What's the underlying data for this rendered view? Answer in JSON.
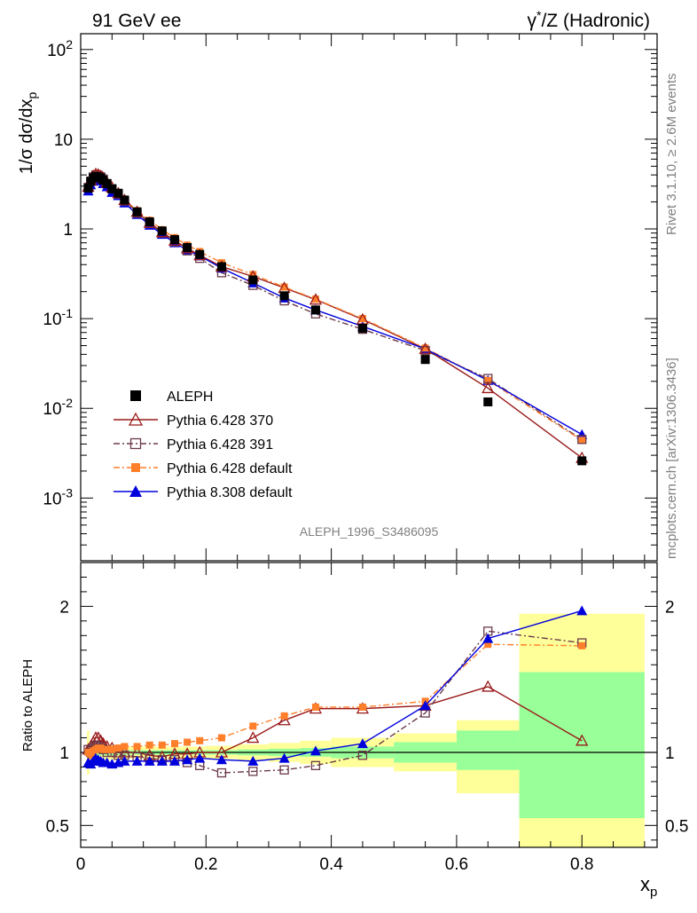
{
  "header": {
    "left_label": "91 GeV ee",
    "right_label_prefix": "γ",
    "right_label_sup": "*",
    "right_label_suffix": "/Z (Hadronic)"
  },
  "side_text": {
    "rivet": "Rivet 3.1.10, ≥ 2.6M events",
    "mcplots": "mcplots.cern.ch [arXiv:1306.3436]"
  },
  "analysis_id": "ALEPH_1996_S3486095",
  "colors": {
    "aleph": "#000000",
    "p370": "#9a1a1a",
    "p391": "#6b3a4a",
    "p6def": "#ff7f2a",
    "p8def": "#0000dd",
    "band_inner": "#99ff99",
    "band_outer": "#ffff99"
  },
  "chart_data": [
    {
      "type": "line",
      "panel": "main",
      "title": "",
      "xlabel": "",
      "ylabel": "1/σ dσ/dx_p",
      "yscale": "log",
      "ylim": [
        0.0002,
        150
      ],
      "xlim": [
        0,
        0.92
      ],
      "y_tick_labels": [
        "10^-3",
        "10^-2",
        "10^-1",
        "1",
        "10",
        "10^2"
      ],
      "legend": [
        {
          "key": "aleph",
          "label": "ALEPH"
        },
        {
          "key": "p370",
          "label": "Pythia 6.428 370"
        },
        {
          "key": "p391",
          "label": "Pythia 6.428 391"
        },
        {
          "key": "p6def",
          "label": "Pythia 6.428 default"
        },
        {
          "key": "p8def",
          "label": "Pythia 8.308 default"
        }
      ],
      "legend_position": "bottom-left",
      "x": [
        0.012,
        0.016,
        0.02,
        0.024,
        0.028,
        0.032,
        0.036,
        0.042,
        0.05,
        0.06,
        0.07,
        0.09,
        0.11,
        0.13,
        0.15,
        0.17,
        0.19,
        0.225,
        0.275,
        0.325,
        0.375,
        0.45,
        0.55,
        0.65,
        0.8
      ],
      "series": [
        {
          "key": "aleph",
          "values": [
            2.85,
            3.4,
            3.7,
            3.85,
            3.8,
            3.7,
            3.5,
            3.2,
            2.8,
            2.5,
            2.1,
            1.55,
            1.2,
            0.95,
            0.76,
            0.62,
            0.52,
            0.38,
            0.27,
            0.18,
            0.125,
            0.078,
            0.035,
            0.0118,
            0.0026
          ]
        },
        {
          "key": "p370",
          "values": [
            2.95,
            3.5,
            3.9,
            4.1,
            4.05,
            3.9,
            3.7,
            3.3,
            2.9,
            2.5,
            2.1,
            1.55,
            1.17,
            0.92,
            0.74,
            0.61,
            0.51,
            0.38,
            0.295,
            0.22,
            0.163,
            0.098,
            0.046,
            0.0168,
            0.0028
          ]
        },
        {
          "key": "p391",
          "values": [
            2.9,
            3.4,
            3.8,
            4.0,
            3.95,
            3.8,
            3.6,
            3.2,
            2.8,
            2.45,
            2.05,
            1.5,
            1.15,
            0.9,
            0.72,
            0.57,
            0.47,
            0.325,
            0.235,
            0.158,
            0.113,
            0.076,
            0.044,
            0.0215,
            0.0045
          ]
        },
        {
          "key": "p6def",
          "values": [
            2.85,
            3.35,
            3.75,
            3.95,
            3.9,
            3.8,
            3.6,
            3.25,
            2.85,
            2.55,
            2.15,
            1.6,
            1.25,
            0.98,
            0.8,
            0.66,
            0.56,
            0.42,
            0.31,
            0.225,
            0.165,
            0.1,
            0.047,
            0.0205,
            0.0044
          ]
        },
        {
          "key": "p8def",
          "values": [
            2.65,
            3.1,
            3.4,
            3.6,
            3.55,
            3.45,
            3.2,
            2.95,
            2.55,
            2.35,
            1.95,
            1.45,
            1.1,
            0.87,
            0.7,
            0.58,
            0.5,
            0.365,
            0.25,
            0.17,
            0.125,
            0.082,
            0.046,
            0.0205,
            0.0051
          ]
        }
      ]
    },
    {
      "type": "line",
      "panel": "ratio",
      "title": "",
      "xlabel": "x_p",
      "ylabel": "Ratio to ALEPH",
      "ylim": [
        0.35,
        2.3
      ],
      "xlim": [
        0,
        0.92
      ],
      "y_tick_labels": [
        "0.5",
        "1",
        "2"
      ],
      "x_tick_labels": [
        "0",
        "0.2",
        "0.4",
        "0.6",
        "0.8"
      ],
      "reference_line": 1,
      "x": [
        0.012,
        0.016,
        0.02,
        0.024,
        0.028,
        0.032,
        0.036,
        0.042,
        0.05,
        0.06,
        0.07,
        0.09,
        0.11,
        0.13,
        0.15,
        0.17,
        0.19,
        0.225,
        0.275,
        0.325,
        0.375,
        0.45,
        0.55,
        0.65,
        0.8
      ],
      "series": [
        {
          "key": "p370",
          "values": [
            1.02,
            1.04,
            1.07,
            1.1,
            1.1,
            1.08,
            1.06,
            1.04,
            1.03,
            1.0,
            1.0,
            1.0,
            0.98,
            0.97,
            0.99,
            0.99,
            1.0,
            1.0,
            1.1,
            1.22,
            1.3,
            1.3,
            1.32,
            1.45,
            1.08
          ]
        },
        {
          "key": "p391",
          "values": [
            1.02,
            1.0,
            1.03,
            1.05,
            1.04,
            1.03,
            1.02,
            1.0,
            1.0,
            0.98,
            0.98,
            0.97,
            0.96,
            0.95,
            0.95,
            0.93,
            0.91,
            0.86,
            0.87,
            0.88,
            0.91,
            0.98,
            1.27,
            1.83,
            1.75
          ]
        },
        {
          "key": "p6def",
          "values": [
            1.0,
            0.98,
            1.01,
            1.02,
            1.03,
            1.03,
            1.02,
            1.02,
            1.02,
            1.03,
            1.04,
            1.04,
            1.05,
            1.05,
            1.06,
            1.07,
            1.08,
            1.1,
            1.18,
            1.25,
            1.31,
            1.31,
            1.35,
            1.74,
            1.73
          ]
        },
        {
          "key": "p8def",
          "values": [
            0.93,
            0.92,
            0.94,
            0.96,
            0.95,
            0.94,
            0.93,
            0.93,
            0.92,
            0.93,
            0.94,
            0.94,
            0.94,
            0.94,
            0.94,
            0.95,
            0.96,
            0.95,
            0.94,
            0.96,
            1.01,
            1.06,
            1.32,
            1.78,
            1.97
          ]
        }
      ],
      "uncertainty_bands": [
        {
          "x0": 0.01,
          "x1": 0.014,
          "inner": [
            0.95,
            1.05
          ],
          "outer": [
            0.85,
            1.15
          ]
        },
        {
          "x0": 0.014,
          "x1": 0.06,
          "inner": [
            0.98,
            1.02
          ],
          "outer": [
            0.95,
            1.05
          ]
        },
        {
          "x0": 0.06,
          "x1": 0.2,
          "inner": [
            0.985,
            1.015
          ],
          "outer": [
            0.96,
            1.04
          ]
        },
        {
          "x0": 0.2,
          "x1": 0.25,
          "inner": [
            0.985,
            1.015
          ],
          "outer": [
            0.955,
            1.045
          ]
        },
        {
          "x0": 0.25,
          "x1": 0.3,
          "inner": [
            0.98,
            1.02
          ],
          "outer": [
            0.945,
            1.055
          ]
        },
        {
          "x0": 0.3,
          "x1": 0.35,
          "inner": [
            0.975,
            1.025
          ],
          "outer": [
            0.935,
            1.065
          ]
        },
        {
          "x0": 0.35,
          "x1": 0.4,
          "inner": [
            0.97,
            1.03
          ],
          "outer": [
            0.92,
            1.08
          ]
        },
        {
          "x0": 0.4,
          "x1": 0.5,
          "inner": [
            0.96,
            1.04
          ],
          "outer": [
            0.9,
            1.1
          ]
        },
        {
          "x0": 0.5,
          "x1": 0.6,
          "inner": [
            0.93,
            1.07
          ],
          "outer": [
            0.87,
            1.13
          ]
        },
        {
          "x0": 0.6,
          "x1": 0.7,
          "inner": [
            0.88,
            1.15
          ],
          "outer": [
            0.72,
            1.22
          ]
        },
        {
          "x0": 0.7,
          "x1": 0.9,
          "inner": [
            0.55,
            1.55
          ],
          "outer": [
            0.35,
            1.95
          ]
        }
      ]
    }
  ]
}
